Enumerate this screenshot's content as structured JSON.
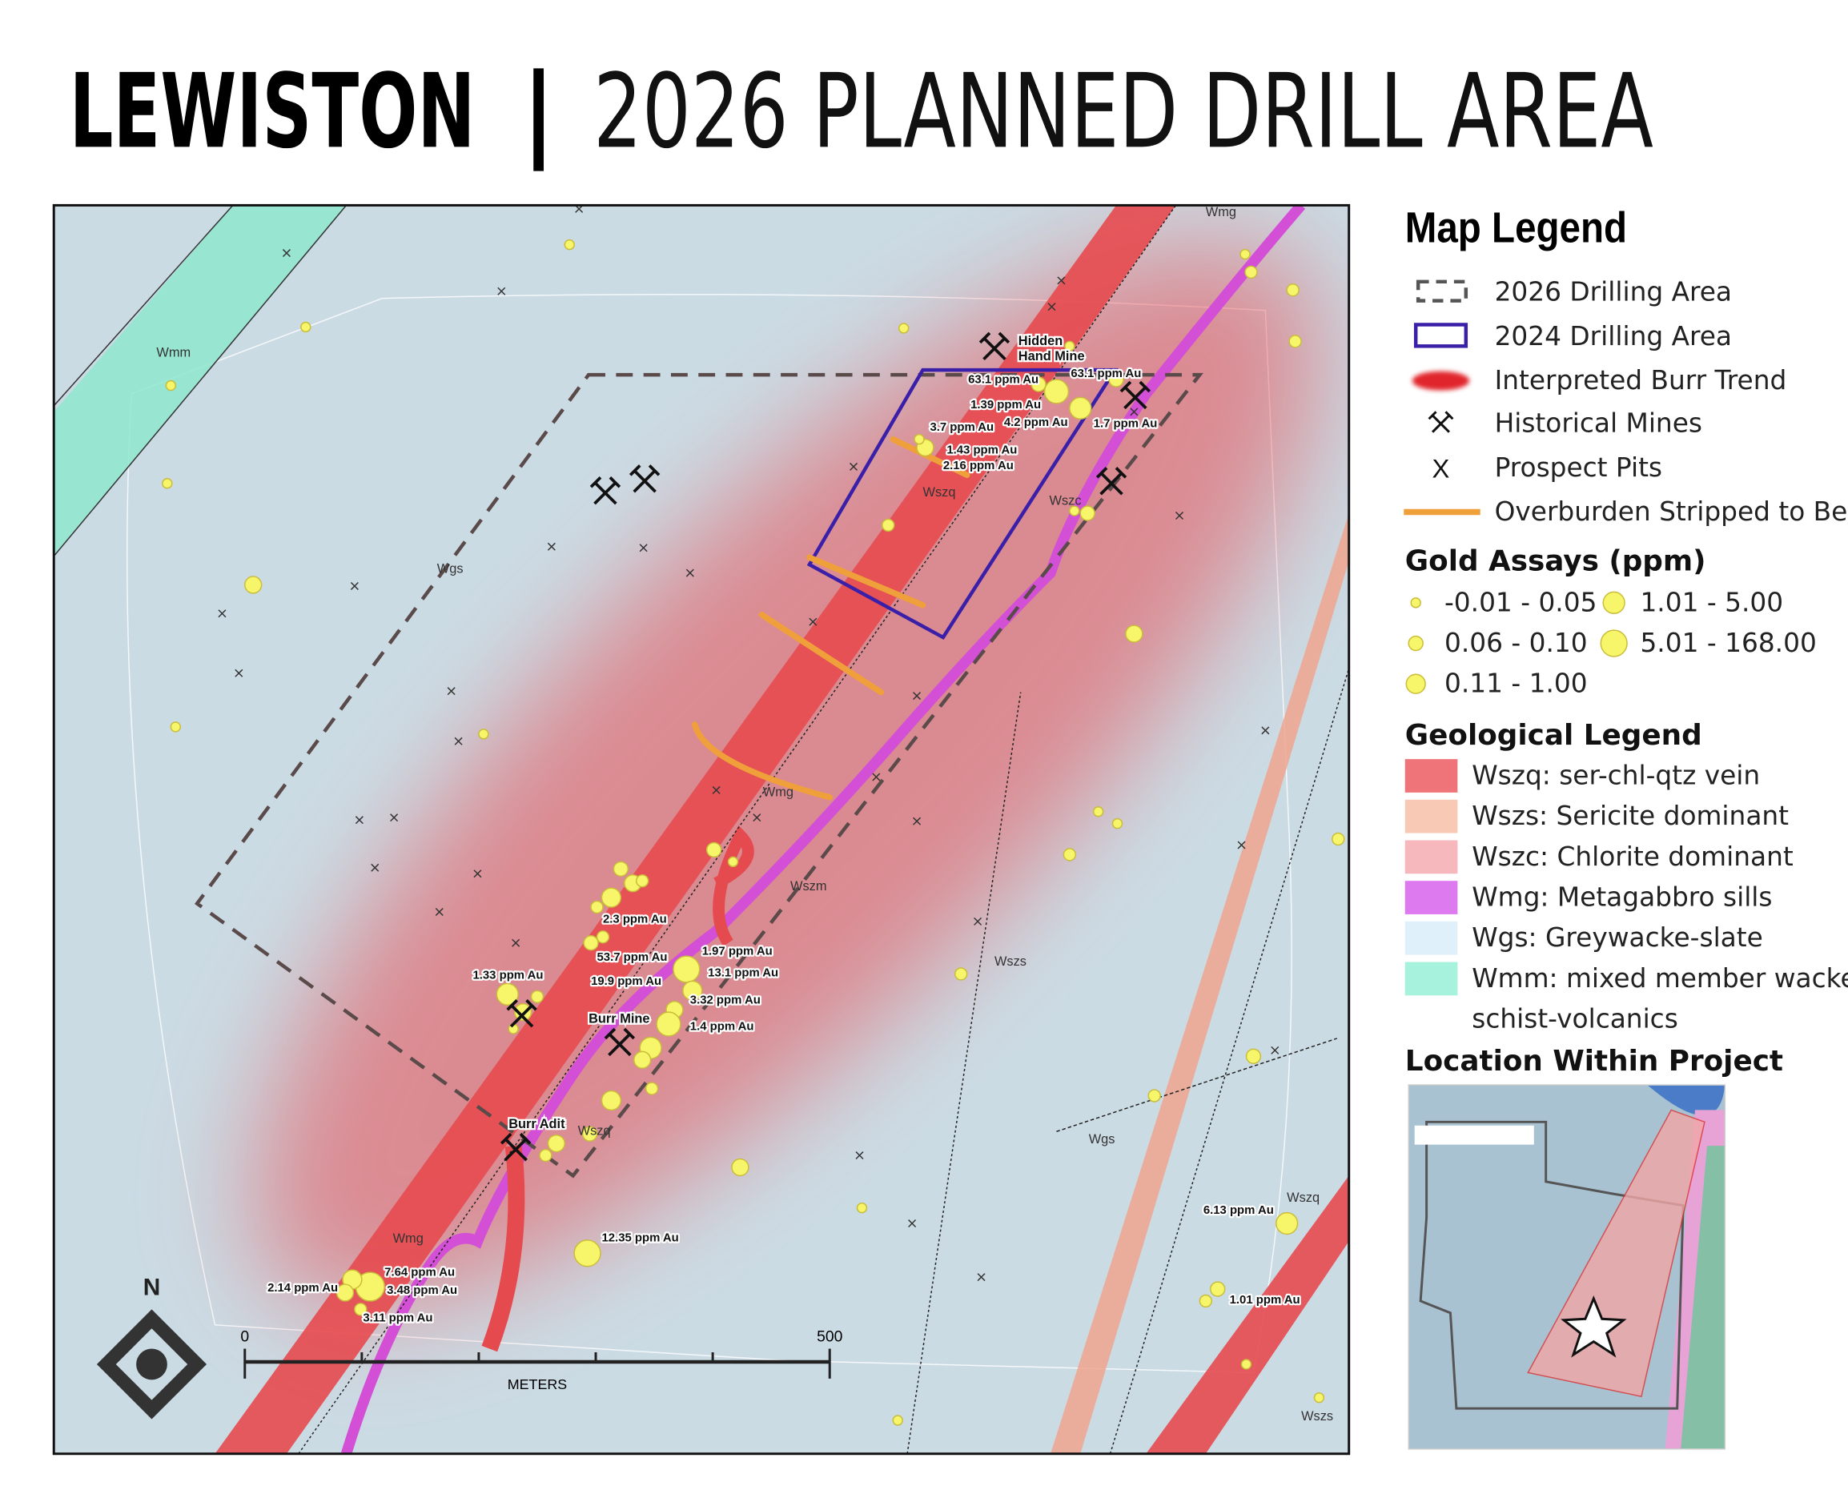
{
  "header": {
    "title_bold": "LEWISTON",
    "separator": "|",
    "title": "2026 PLANNED DRILL AREA"
  },
  "map": {
    "unit_labels": [
      "Wmm",
      "Wgs",
      "Wszq",
      "Wszc",
      "Wmg",
      "Wszm",
      "Wszs",
      "Wgs",
      "Wszq",
      "Wszq",
      "Wszs",
      "Wmg",
      "Wmg"
    ],
    "mine_labels": [
      "Hidden",
      "Hand Mine",
      "Burr Mine",
      "Burr Adit"
    ],
    "assay_labels": [
      "63.1 ppm Au",
      "63.1 ppm Au",
      "1.39 ppm Au",
      "4.2 ppm Au",
      "1.7 ppm Au",
      "3.7 ppm Au",
      "1.43 ppm Au",
      "2.16 ppm Au",
      "2.3 ppm Au",
      "53.7 ppm Au",
      "1.97 ppm Au",
      "13.1 ppm Au",
      "19.9 ppm Au",
      "3.32 ppm Au",
      "1.4 ppm Au",
      "1.33 ppm Au",
      "12.35 ppm Au",
      "6.13 ppm Au",
      "1.01 ppm Au",
      "7.64 ppm Au",
      "2.14 ppm Au",
      "3.48 ppm Au",
      "3.11 ppm Au"
    ],
    "scale_bar": {
      "start": "0",
      "end": "500",
      "unit": "METERS"
    },
    "north": "N"
  },
  "legend": {
    "title": "Map Legend",
    "items": [
      "2026 Drilling Area",
      "2024 Drilling Area",
      "Interpreted Burr Trend",
      "Historical Mines",
      "Prospect Pits",
      "Overburden Stripped to Bedrock"
    ],
    "gold_title": "Gold Assays (ppm)",
    "gold_ranges": [
      "-0.01 - 0.05",
      "0.06 - 0.10",
      "0.11 - 1.00",
      "1.01 - 5.00",
      "5.01 - 168.00"
    ],
    "geology_title": "Geological Legend",
    "geology": [
      "Wszq:  ser-chl-qtz vein",
      "Wszs: Sericite dominant",
      "Wszc: Chlorite dominant",
      "Wmg: Metagabbro sills",
      "Wgs: Greywacke-slate",
      "Wmm: mixed member wacke-",
      "schist-volcanics"
    ],
    "location_title": "Location Within Project"
  }
}
